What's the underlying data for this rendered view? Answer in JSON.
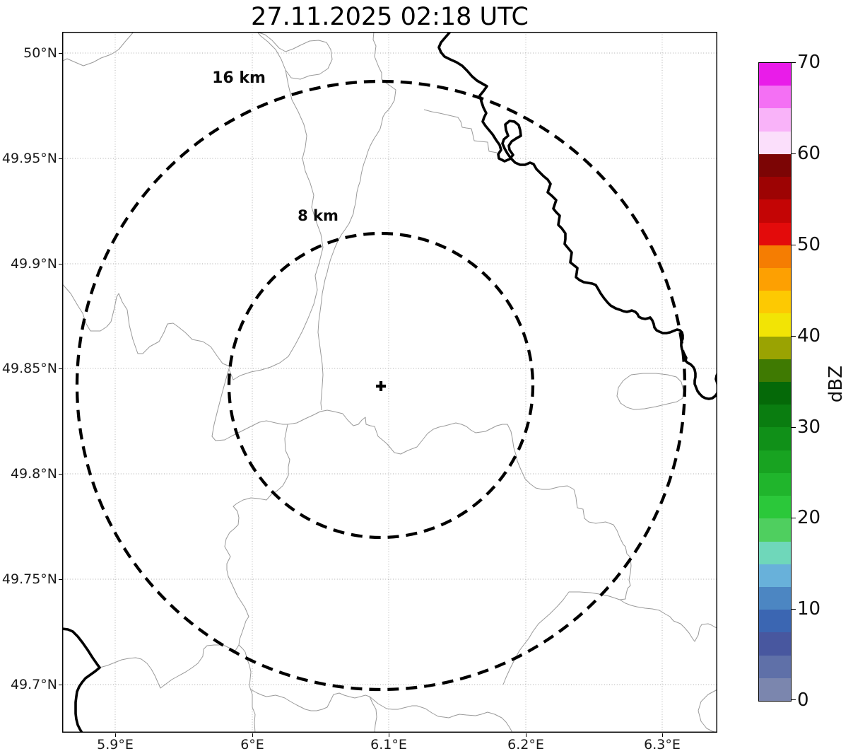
{
  "title": "27.11.2025 02:18 UTC",
  "map": {
    "x_tick_labels": [
      "5.9°E",
      "6°E",
      "6.1°E",
      "6.2°E",
      "6.3°E"
    ],
    "y_tick_labels": [
      "50°N",
      "49.95°N",
      "49.9°N",
      "49.85°N",
      "49.8°N",
      "49.75°N",
      "49.7°N"
    ],
    "range_rings": [
      {
        "label": "16 km",
        "radius_km": 16
      },
      {
        "label": "8 km",
        "radius_km": 8
      }
    ],
    "center_marker": "+"
  },
  "colorbar": {
    "label": "dBZ",
    "min": 0,
    "max": 70,
    "step_dbz": 2.5,
    "tick_labels": [
      "70",
      "60",
      "50",
      "40",
      "30",
      "20",
      "10",
      "0"
    ],
    "colors_bottom_to_top": [
      "#7b86ae",
      "#5f70a8",
      "#48579f",
      "#3b66b2",
      "#4c86c2",
      "#68b1da",
      "#6fd7ba",
      "#4fcf5f",
      "#2bc83a",
      "#20b52c",
      "#18a321",
      "#109018",
      "#0a7d10",
      "#056908",
      "#3f7a02",
      "#9aa302",
      "#f2e405",
      "#fdc902",
      "#fda002",
      "#f57d02",
      "#e30b0b",
      "#c40505",
      "#9d0303",
      "#7c0505",
      "#fbdffb",
      "#f9b3f9",
      "#f470f4",
      "#e91ce9"
    ]
  }
}
